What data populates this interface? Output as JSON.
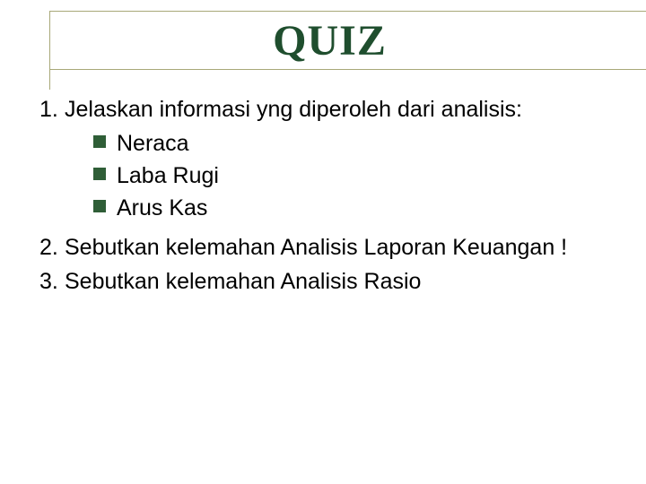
{
  "slide": {
    "title": "QUIZ",
    "title_color": "#1f4e2e",
    "title_font": "Times New Roman",
    "title_fontsize": 48,
    "rule_color": "#a8a878",
    "body_color": "#000000",
    "body_fontsize": 25,
    "bullet_color": "#2f5e37",
    "items": [
      {
        "number": "1.",
        "text": "Jelaskan informasi yng diperoleh dari analisis:",
        "subitems": [
          "Neraca",
          "Laba Rugi",
          "Arus Kas"
        ]
      },
      {
        "number": "2.",
        "text": "Sebutkan kelemahan Analisis Laporan Keuangan !"
      },
      {
        "number": "3.",
        "text": "Sebutkan kelemahan Analisis Rasio"
      }
    ]
  }
}
